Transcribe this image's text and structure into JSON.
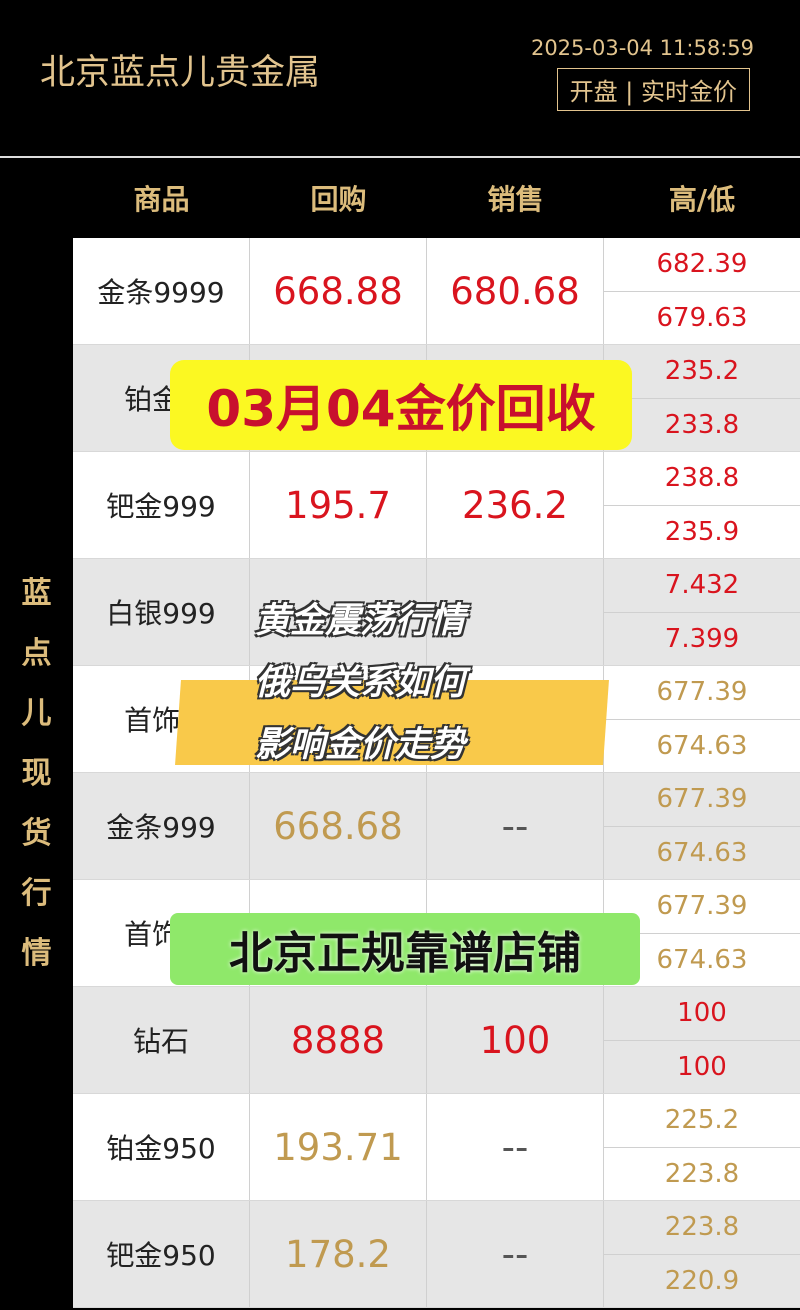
{
  "header": {
    "title": "北京蓝点儿贵金属",
    "datetime": "2025-03-04 11:58:59",
    "status": "开盘 | 实时金价"
  },
  "columns": [
    "商品",
    "回购",
    "销售",
    "高/低"
  ],
  "side_label": [
    "蓝",
    "点",
    "儿",
    "现",
    "货",
    "行",
    "情"
  ],
  "colors": {
    "red": "#d9141e",
    "gold": "#c09a50"
  },
  "rows": [
    {
      "name": "金条9999",
      "buy": "668.88",
      "sell": "680.68",
      "high": "682.39",
      "low": "679.63",
      "color": "red"
    },
    {
      "name": "铂金9",
      "buy": "",
      "sell": "",
      "high": "235.2",
      "low": "233.8",
      "color": "red"
    },
    {
      "name": "钯金999",
      "buy": "195.7",
      "sell": "236.2",
      "high": "238.8",
      "low": "235.9",
      "color": "red"
    },
    {
      "name": "白银999",
      "buy": "",
      "sell": "",
      "high": "7.432",
      "low": "7.399",
      "color": "red"
    },
    {
      "name": "首饰9",
      "buy": "",
      "sell": "",
      "high": "677.39",
      "low": "674.63",
      "color": "gold"
    },
    {
      "name": "金条999",
      "buy": "668.68",
      "sell": "--",
      "high": "677.39",
      "low": "674.63",
      "color": "gold"
    },
    {
      "name": "首饰1",
      "buy": "",
      "sell": "",
      "high": "677.39",
      "low": "674.63",
      "color": "gold"
    },
    {
      "name": "钻石",
      "buy": "8888",
      "sell": "100",
      "high": "100",
      "low": "100",
      "color": "red"
    },
    {
      "name": "铂金950",
      "buy": "193.71",
      "sell": "--",
      "high": "225.2",
      "low": "223.8",
      "color": "gold"
    },
    {
      "name": "钯金950",
      "buy": "178.2",
      "sell": "--",
      "high": "223.8",
      "low": "220.9",
      "color": "gold"
    }
  ],
  "overlays": {
    "date_banner": "03月04金价回收",
    "headline": [
      "黄金震荡行情",
      "俄乌关系如何",
      "影响金价走势"
    ],
    "store_banner": "北京正规靠谱店铺"
  }
}
